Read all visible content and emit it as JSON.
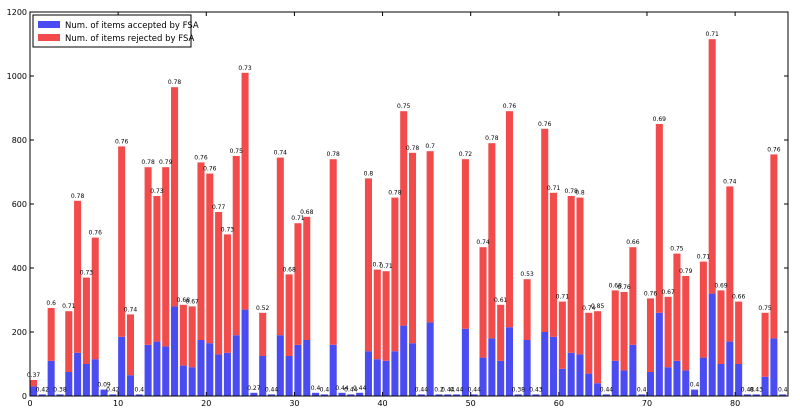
{
  "chart_data": {
    "type": "bar",
    "stacked": true,
    "x": [
      0,
      1,
      2,
      3,
      4,
      5,
      6,
      7,
      8,
      9,
      10,
      11,
      12,
      13,
      14,
      15,
      16,
      17,
      18,
      19,
      20,
      21,
      22,
      23,
      24,
      25,
      26,
      27,
      28,
      29,
      30,
      31,
      32,
      33,
      34,
      35,
      36,
      37,
      38,
      39,
      40,
      41,
      42,
      43,
      44,
      45,
      46,
      47,
      48,
      49,
      50,
      51,
      52,
      53,
      54,
      55,
      56,
      57,
      58,
      59,
      60,
      61,
      62,
      63,
      64,
      65,
      66,
      67,
      68,
      69,
      70,
      71,
      72,
      73,
      74,
      75,
      76,
      77,
      78,
      79,
      80,
      81,
      82,
      83,
      84,
      85
    ],
    "series": [
      {
        "name": "Num. of items accepted by FSA",
        "color": "#4b4bf2",
        "values": [
          30,
          5,
          110,
          5,
          75,
          135,
          100,
          115,
          20,
          5,
          185,
          65,
          5,
          160,
          170,
          155,
          280,
          95,
          90,
          175,
          165,
          130,
          135,
          190,
          270,
          10,
          125,
          5,
          190,
          125,
          160,
          175,
          10,
          5,
          160,
          10,
          5,
          10,
          140,
          115,
          110,
          140,
          220,
          165,
          5,
          230,
          5,
          5,
          5,
          210,
          5,
          120,
          180,
          110,
          215,
          5,
          175,
          5,
          200,
          185,
          85,
          135,
          130,
          70,
          40,
          5,
          110,
          80,
          160,
          5,
          75,
          260,
          90,
          110,
          80,
          20,
          120,
          320,
          100,
          170,
          100,
          5,
          5,
          60,
          180,
          5
        ]
      },
      {
        "name": "Num. of items rejected by FSA",
        "color": "#f24b4b",
        "values": [
          20,
          0,
          165,
          0,
          190,
          475,
          270,
          380,
          0,
          0,
          595,
          190,
          0,
          555,
          455,
          560,
          685,
          190,
          190,
          555,
          530,
          445,
          370,
          560,
          740,
          0,
          135,
          0,
          555,
          255,
          380,
          385,
          0,
          0,
          580,
          0,
          0,
          0,
          540,
          280,
          280,
          480,
          670,
          595,
          0,
          535,
          0,
          0,
          0,
          530,
          0,
          345,
          610,
          175,
          675,
          0,
          190,
          0,
          635,
          450,
          210,
          490,
          490,
          190,
          225,
          0,
          220,
          245,
          305,
          0,
          230,
          590,
          220,
          335,
          295,
          0,
          300,
          795,
          230,
          485,
          195,
          0,
          0,
          200,
          575,
          0
        ]
      }
    ],
    "labels": [
      "0.37",
      "0.42",
      "0.6",
      "0.38",
      "0.71",
      "0.78",
      "0.73",
      "0.76",
      "0.09",
      "0.42",
      "0.76",
      "0.74",
      "0.4",
      "0.78",
      "0.73",
      "0.79",
      "0.78",
      "0.68",
      "0.67",
      "0.76",
      "0.76",
      "0.77",
      "0.73",
      "0.75",
      "0.73",
      "0.27",
      "0.52",
      "0.44",
      "0.74",
      "0.68",
      "0.71",
      "0.68",
      "0.4",
      "0.4",
      "0.78",
      "0.44",
      "0.44",
      "0.44",
      "0.8",
      "0.7",
      "0.71",
      "0.78",
      "0.75",
      "0.78",
      "0.44",
      "0.7",
      "0.2",
      "0.44",
      "0.44",
      "0.72",
      "0.44",
      "0.74",
      "0.78",
      "0.61",
      "0.76",
      "0.38",
      "0.53",
      "0.43",
      "0.76",
      "0.71",
      "0.71",
      "0.78",
      "0.8",
      "0.74",
      "0.85",
      "0.44",
      "0.68",
      "0.76",
      "0.66",
      "0.4",
      "0.76",
      "0.69",
      "0.67",
      "0.75",
      "0.79",
      "0.4",
      "0.71",
      "0.71",
      "0.69",
      "0.74",
      "0.66",
      "0.48",
      "0.43",
      "0.75",
      "0.76",
      "0.4"
    ],
    "title": "",
    "xlabel": "",
    "ylabel": "",
    "xlim": [
      0,
      86
    ],
    "ylim": [
      0,
      1200
    ],
    "xticks": [
      "0",
      "10",
      "20",
      "30",
      "40",
      "50",
      "60",
      "70",
      "80"
    ],
    "yticks": [
      "0",
      "200",
      "400",
      "600",
      "800",
      "1000",
      "1200"
    ],
    "legend_position": "top-left",
    "grid": false
  }
}
